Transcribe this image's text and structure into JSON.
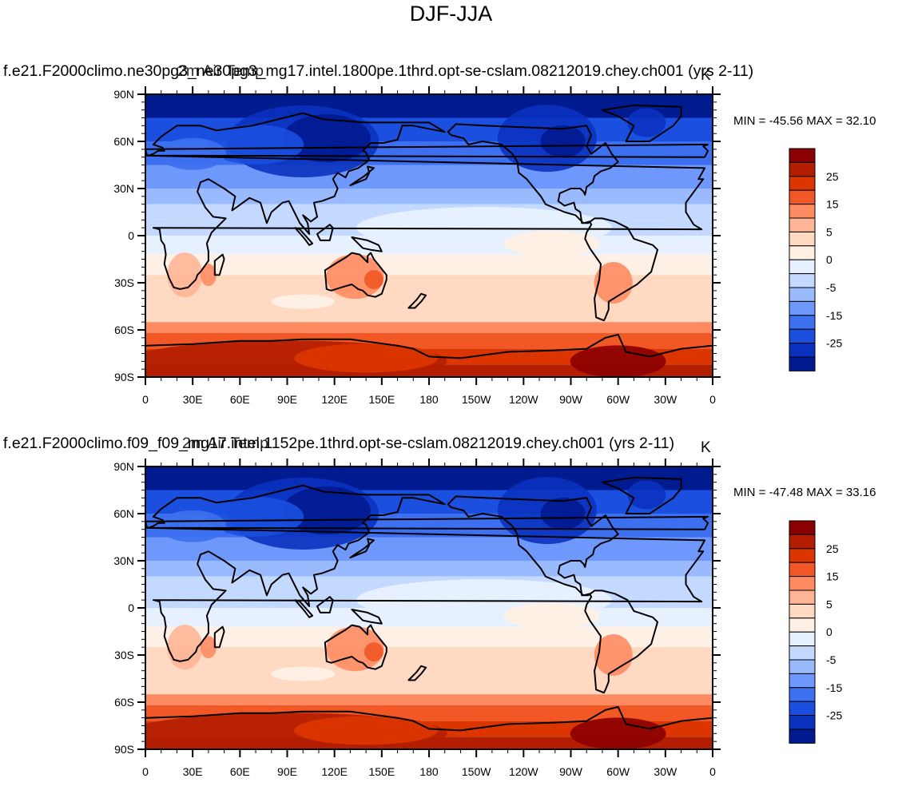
{
  "figure": {
    "title": "DJF-JJA",
    "panels": [
      {
        "title_layer_1": "f.e21.F2000climo.ne30pg3_ne30pg3_mg17.intel.1800pe.1thrd.opt-se-cslam.08212019.chey.ch001 (yrs 2-11)",
        "title_layer_2": "2m Air Temp",
        "units": "K",
        "min_max": "MIN = -45.56 MAX =  32.10"
      },
      {
        "title_layer_1": "f.e21.F2000climo.f09_f09_mg17.intel.1152pe.1thrd.opt-se-cslam.08212019.chey.ch001 (yrs 2-11)",
        "title_layer_2": "2m Air Temp",
        "units": "K",
        "min_max": "MIN = -47.48 MAX =  33.16"
      }
    ],
    "lat_labels": [
      "90N",
      "60N",
      "30N",
      "0",
      "30S",
      "60S",
      "90S"
    ],
    "lon_labels": [
      "0",
      "30E",
      "60E",
      "90E",
      "120E",
      "150E",
      "180",
      "150W",
      "120W",
      "90W",
      "60W",
      "30W",
      "0"
    ],
    "colorbar": {
      "labels": [
        "25",
        "15",
        "5",
        "0",
        "-5",
        "-15",
        "-25"
      ],
      "colors": [
        "#8b0000",
        "#b31e00",
        "#dd3500",
        "#f25826",
        "#ff8b62",
        "#ffb596",
        "#ffd9c2",
        "#fff0e6",
        "#e6f0ff",
        "#c4d9ff",
        "#99baff",
        "#6e98fb",
        "#3d70f0",
        "#1a4fe0",
        "#0a32bf",
        "#001a8f"
      ]
    }
  }
}
